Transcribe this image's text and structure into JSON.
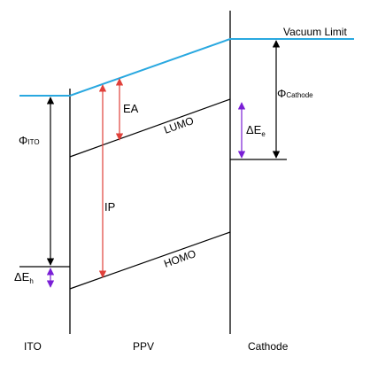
{
  "diagram": {
    "colors": {
      "vacuum": "#29a8e0",
      "line": "#000000",
      "ip_arrow": "#e0403a",
      "ea_arrow": "#e0403a",
      "delta_arrow": "#7a1fd6"
    },
    "labels": {
      "vacuum_limit": "Vacuum Limit",
      "ea": "EA",
      "ip": "IP",
      "lumo": "LUMO",
      "homo": "HOMO",
      "phi": "Φ",
      "phi_ito_sub": "ITO",
      "phi_cathode_sub": "Cathode",
      "delta_e": "ΔE",
      "delta_e_e_sub": "e",
      "delta_e_h_sub": "h",
      "bottom_ito": "ITO",
      "bottom_ppv": "PPV",
      "bottom_cathode": "Cathode"
    }
  }
}
